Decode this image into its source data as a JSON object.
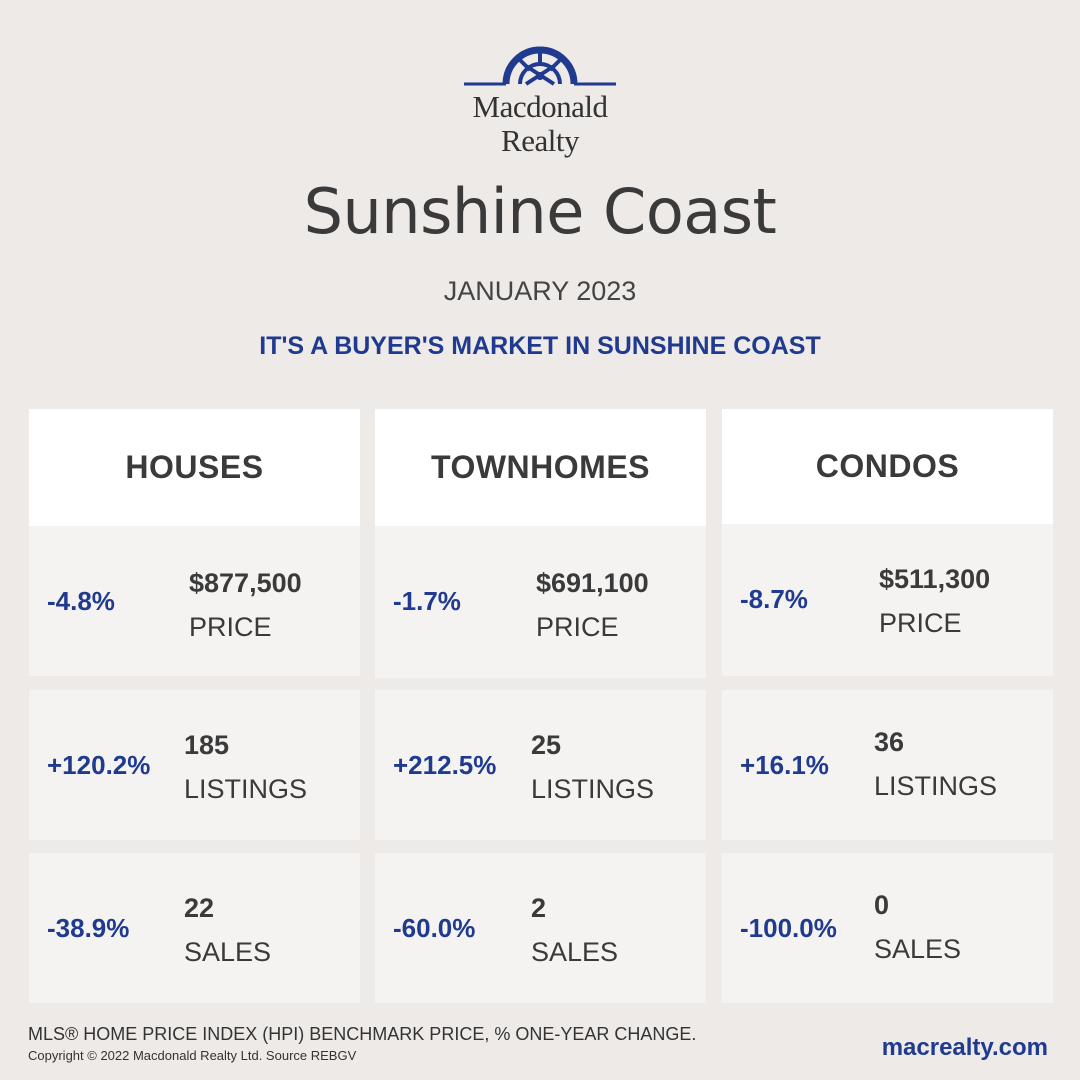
{
  "brand": {
    "logo_icon": "sunburst-arch-icon",
    "logo_line1": "Macdonald",
    "logo_line2": "Realty",
    "accent_color": "#1f3a8f"
  },
  "title": "Sunshine Coast",
  "date": "JANUARY 2023",
  "headline": "IT'S A BUYER'S MARKET IN SUNSHINE COAST",
  "columns": [
    {
      "name": "HOUSES",
      "rows": [
        {
          "change": "-4.8%",
          "value": "$877,500",
          "label": "PRICE"
        },
        {
          "change": "+120.2%",
          "value": "185",
          "label": "LISTINGS"
        },
        {
          "change": "-38.9%",
          "value": "22",
          "label": "SALES"
        }
      ]
    },
    {
      "name": "TOWNHOMES",
      "rows": [
        {
          "change": "-1.7%",
          "value": "$691,100",
          "label": "PRICE"
        },
        {
          "change": "+212.5%",
          "value": "25",
          "label": "LISTINGS"
        },
        {
          "change": "-60.0%",
          "value": "2",
          "label": "SALES"
        }
      ]
    },
    {
      "name": "CONDOS",
      "rows": [
        {
          "change": "-8.7%",
          "value": "$511,300",
          "label": "PRICE"
        },
        {
          "change": "+16.1%",
          "value": "36",
          "label": "LISTINGS"
        },
        {
          "change": "-100.0%",
          "value": "0",
          "label": "SALES"
        }
      ]
    }
  ],
  "footer": {
    "note": "MLS® HOME PRICE INDEX (HPI) BENCHMARK PRICE, % ONE-YEAR CHANGE.",
    "copyright": "Copyright © 2022 Macdonald Realty Ltd. Source REBGV",
    "website": "macrealty.com"
  }
}
